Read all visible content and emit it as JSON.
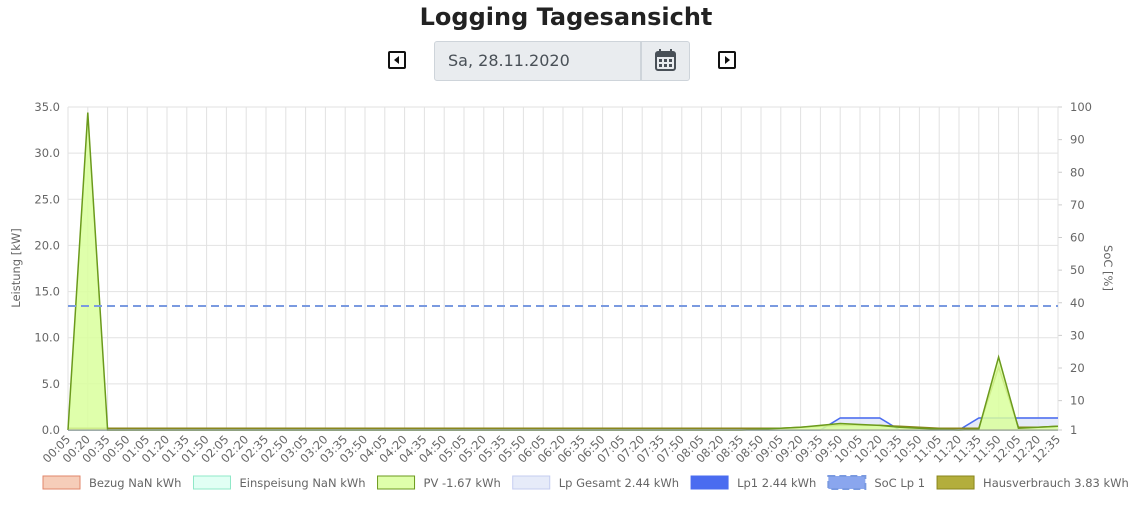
{
  "header": {
    "title": "Logging Tagesansicht",
    "date": "Sa, 28.11.2020"
  },
  "chart_data": {
    "type": "area",
    "ylabel": "Leistung [kW]",
    "y2label": "SoC [%]",
    "categories": [
      "00:05",
      "00:20",
      "00:35",
      "00:50",
      "01:05",
      "01:20",
      "01:35",
      "01:50",
      "02:05",
      "02:20",
      "02:35",
      "02:50",
      "03:05",
      "03:20",
      "03:35",
      "03:50",
      "04:05",
      "04:20",
      "04:35",
      "04:50",
      "05:05",
      "05:20",
      "05:35",
      "05:50",
      "06:05",
      "06:20",
      "06:35",
      "06:50",
      "07:05",
      "07:20",
      "07:35",
      "07:50",
      "08:05",
      "08:20",
      "08:35",
      "08:50",
      "09:05",
      "09:20",
      "09:35",
      "09:50",
      "10:05",
      "10:20",
      "10:35",
      "10:50",
      "11:05",
      "11:20",
      "11:35",
      "11:50",
      "12:05",
      "12:20",
      "12:35"
    ],
    "ylim": [
      0,
      35
    ],
    "yticks": [
      {
        "value": 0,
        "label": "0.0"
      },
      {
        "value": 5,
        "label": "5.0"
      },
      {
        "value": 10,
        "label": "10.0"
      },
      {
        "value": 15,
        "label": "15.0"
      },
      {
        "value": 20,
        "label": "20.0"
      },
      {
        "value": 25,
        "label": "25.0"
      },
      {
        "value": 30,
        "label": "30.0"
      },
      {
        "value": 35,
        "label": "35.0"
      }
    ],
    "y2lim": [
      1,
      100
    ],
    "y2ticks": [
      1,
      10,
      20,
      30,
      40,
      50,
      60,
      70,
      80,
      90,
      100
    ],
    "grid": true,
    "legend": "bottom",
    "series": [
      {
        "name": "Bezug NaN kWh",
        "color": "#e0866a",
        "fillcolor": "#f4c4ad",
        "fill": true,
        "values": [
          0,
          0,
          0,
          0,
          0,
          0,
          0,
          0,
          0,
          0,
          0,
          0,
          0,
          0,
          0,
          0,
          0,
          0,
          0,
          0,
          0,
          0,
          0,
          0,
          0,
          0,
          0,
          0,
          0,
          0,
          0,
          0,
          0,
          0,
          0,
          0,
          0,
          0,
          0,
          0,
          0,
          0,
          0,
          0,
          0,
          0,
          0,
          0,
          0,
          0,
          0
        ]
      },
      {
        "name": "Einspeisung NaN kWh",
        "color": "#8fe8c8",
        "fillcolor": "#dcfff2",
        "fill": true,
        "values": [
          0,
          0,
          0,
          0,
          0,
          0,
          0,
          0,
          0,
          0,
          0,
          0,
          0,
          0,
          0,
          0,
          0,
          0,
          0,
          0,
          0,
          0,
          0,
          0,
          0,
          0,
          0,
          0,
          0,
          0,
          0,
          0,
          0,
          0,
          0,
          0,
          0,
          0,
          0,
          0,
          0,
          0,
          0,
          0,
          0,
          0,
          0,
          0,
          0,
          0,
          0
        ]
      },
      {
        "name": "PV -1.67 kWh",
        "color": "#6b9a1c",
        "fillcolor": "#d9ff9c",
        "fill": true,
        "values": [
          0,
          34.4,
          0,
          0,
          0,
          0,
          0,
          0,
          0,
          0,
          0,
          0,
          0,
          0,
          0,
          0,
          0,
          0,
          0,
          0,
          0,
          0,
          0,
          0,
          0,
          0,
          0,
          0,
          0,
          0,
          0,
          0,
          0,
          0,
          0,
          0.1,
          0.2,
          0.3,
          0.5,
          0.7,
          0.6,
          0.5,
          0.3,
          0.2,
          0.1,
          0,
          0.1,
          7.9,
          0.2,
          0.3,
          0.4
        ]
      },
      {
        "name": "Lp Gesamt 2.44 kWh",
        "color": "#c4ccf0",
        "fillcolor": "#e2e7f8",
        "fill": true,
        "values": [
          0,
          0,
          0,
          0,
          0,
          0,
          0,
          0,
          0,
          0,
          0,
          0,
          0,
          0,
          0,
          0,
          0,
          0,
          0,
          0,
          0,
          0,
          0,
          0,
          0,
          0,
          0,
          0,
          0,
          0,
          0,
          0,
          0,
          0,
          0,
          0,
          0,
          0,
          0,
          1.3,
          1.3,
          1.3,
          0,
          0,
          0,
          0,
          1.3,
          1.3,
          1.3,
          1.3,
          1.3
        ]
      },
      {
        "name": "Lp1 2.44 kWh",
        "color": "#4a6cf0",
        "fillcolor": "#4a6cf0",
        "fill": false,
        "values": [
          0,
          0,
          0,
          0,
          0,
          0,
          0,
          0,
          0,
          0,
          0,
          0,
          0,
          0,
          0,
          0,
          0,
          0,
          0,
          0,
          0,
          0,
          0,
          0,
          0,
          0,
          0,
          0,
          0,
          0,
          0,
          0,
          0,
          0,
          0,
          0,
          0,
          0,
          0,
          1.3,
          1.3,
          1.3,
          0,
          0,
          0,
          0,
          1.3,
          1.3,
          1.3,
          1.3,
          1.3
        ]
      },
      {
        "name": "SoC Lp 1",
        "color": "#7a9ae0",
        "fillcolor": "#8aa6ee",
        "fill": false,
        "dashed": true,
        "axis": "y2",
        "values": [
          39,
          39,
          39,
          39,
          39,
          39,
          39,
          39,
          39,
          39,
          39,
          39,
          39,
          39,
          39,
          39,
          39,
          39,
          39,
          39,
          39,
          39,
          39,
          39,
          39,
          39,
          39,
          39,
          39,
          39,
          39,
          39,
          39,
          39,
          39,
          39,
          39,
          39,
          39,
          39,
          39,
          39,
          39,
          39,
          39,
          39,
          39,
          39,
          39,
          39,
          39
        ]
      },
      {
        "name": "Hausverbrauch 3.83 kWh",
        "color": "#8a861c",
        "fillcolor": "#b3ae3c",
        "fill": false,
        "values": [
          0.2,
          0.2,
          0.2,
          0.2,
          0.2,
          0.2,
          0.2,
          0.2,
          0.2,
          0.2,
          0.2,
          0.2,
          0.2,
          0.2,
          0.2,
          0.2,
          0.2,
          0.2,
          0.2,
          0.2,
          0.2,
          0.2,
          0.2,
          0.2,
          0.2,
          0.2,
          0.2,
          0.2,
          0.2,
          0.2,
          0.2,
          0.2,
          0.2,
          0.2,
          0.2,
          0.2,
          0.2,
          0.3,
          0.4,
          0.5,
          0.5,
          0.5,
          0.4,
          0.3,
          0.2,
          0.2,
          0.2,
          6.8,
          0.3,
          0.3,
          0.4
        ]
      }
    ]
  }
}
